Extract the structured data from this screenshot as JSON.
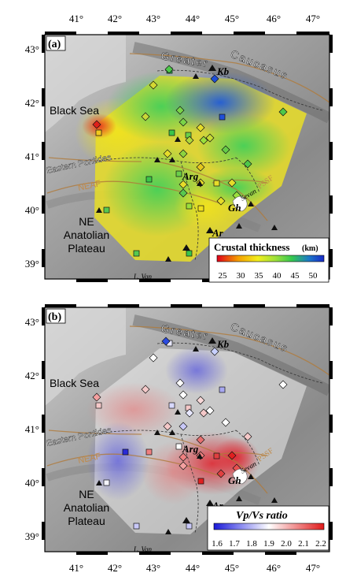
{
  "lon_ticks": [
    "41°",
    "42°",
    "43°",
    "44°",
    "45°",
    "46°",
    "47°"
  ],
  "lat_ticks": [
    "43°",
    "42°",
    "41°",
    "40°",
    "39°"
  ],
  "panel_a": {
    "label": "(a)",
    "places": {
      "black_sea": "Black Sea",
      "greater": "Greater",
      "caucasus": "Caucasus",
      "eastern_pontides": "Eastern Pontides",
      "neaf": "NEAF",
      "ne": "NE",
      "anatolian": "Anatolian",
      "plateau": "Plateau",
      "kb": "Kb",
      "arg": "Arg",
      "gh": "Gh",
      "ar": "Ar",
      "sevan": "Sevan",
      "l_van": "L. Van",
      "pssf": "PSSF"
    },
    "colorbar": {
      "title": "Crustal thickness",
      "unit": "(km)",
      "ticks": [
        "25",
        "30",
        "35",
        "40",
        "45",
        "50"
      ],
      "colors": [
        "#e0001a",
        "#f5a000",
        "#f2ee1e",
        "#9be03c",
        "#35c850",
        "#1c78c8",
        "#1a2ac8"
      ]
    }
  },
  "panel_b": {
    "label": "(b)",
    "places": {
      "black_sea": "Black Sea",
      "greater": "Greater",
      "caucasus": "Caucasus",
      "eastern_pontides": "Eastern Pontides",
      "neaf": "NEAF",
      "ne": "NE",
      "anatolian": "Anatolian",
      "plateau": "Plateau",
      "kb": "Kb",
      "arg": "Arg",
      "gh": "Gh",
      "ar": "Ar",
      "sevan": "Sevan",
      "l_van": "L. Van",
      "pssf": "PSSF"
    },
    "colorbar": {
      "title": "Vp/Vs ratio",
      "ticks": [
        "1.6",
        "1.7",
        "1.8",
        "1.9",
        "2.0",
        "2.1",
        "2.2"
      ],
      "colors": [
        "#1a1ad8",
        "#8c8cf0",
        "#ffffff",
        "#f08c8c",
        "#e01a1a"
      ]
    }
  }
}
